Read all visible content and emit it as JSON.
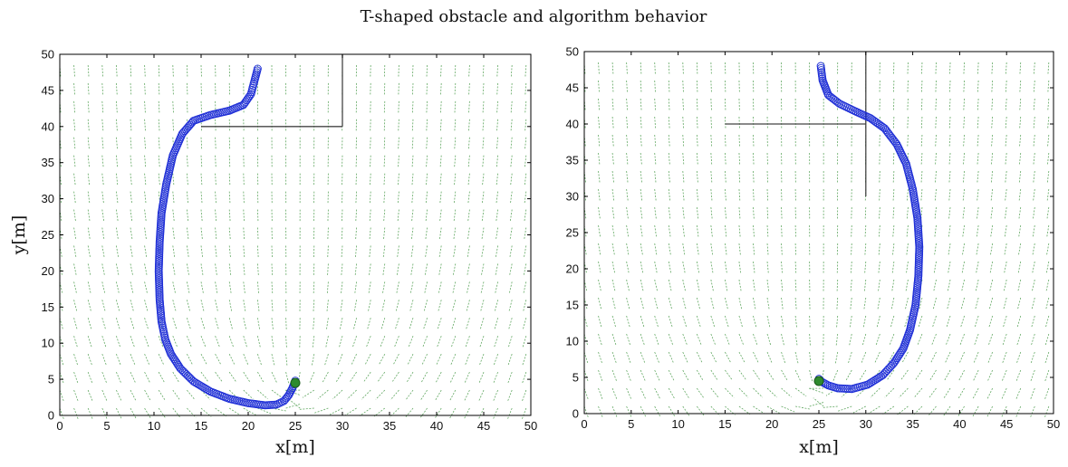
{
  "title": "T-shaped obstacle and algorithm behavior",
  "colors": {
    "trajectory": "#1f2fd6",
    "field": "#2e8b2e",
    "obstacle": "#444444",
    "goal": "#2e8b2e"
  },
  "chart_data": [
    {
      "type": "scatter",
      "panel": "left",
      "xlabel": "x[m]",
      "ylabel": "y[m]",
      "xlim": [
        0,
        50
      ],
      "ylim": [
        0,
        50
      ],
      "xticks": [
        0,
        5,
        10,
        15,
        20,
        25,
        30,
        35,
        40,
        45,
        50
      ],
      "yticks": [
        0,
        5,
        10,
        15,
        20,
        25,
        30,
        35,
        40,
        45,
        50
      ],
      "grid": false,
      "goal": [
        25,
        4.5
      ],
      "obstacle_segments": [
        {
          "x": [
            15,
            30
          ],
          "y": [
            40,
            40
          ]
        },
        {
          "x": [
            30,
            30
          ],
          "y": [
            40,
            50
          ]
        }
      ],
      "series": [
        {
          "x": [
            21,
            20.7,
            20.3,
            19.5,
            18,
            16,
            14.2,
            13,
            12,
            11.3,
            10.8,
            10.6,
            10.5,
            10.6,
            10.8,
            11.2,
            11.8,
            12.8,
            14.2,
            16,
            18,
            20,
            21.8,
            23,
            23.8,
            24.3,
            24.7,
            25
          ],
          "y": [
            48,
            46.5,
            44.5,
            43,
            42.2,
            41.6,
            40.8,
            39,
            36,
            32,
            28,
            24,
            20,
            16,
            13,
            10.5,
            8.5,
            6.5,
            4.7,
            3.3,
            2.3,
            1.7,
            1.4,
            1.5,
            2,
            2.8,
            3.8,
            4.8
          ]
        }
      ]
    },
    {
      "type": "scatter",
      "panel": "right",
      "xlabel": "x[m]",
      "ylabel": "",
      "xlim": [
        0,
        50
      ],
      "ylim": [
        0,
        50
      ],
      "xticks": [
        0,
        5,
        10,
        15,
        20,
        25,
        30,
        35,
        40,
        45,
        50
      ],
      "yticks": [
        0,
        5,
        10,
        15,
        20,
        25,
        30,
        35,
        40,
        45,
        50
      ],
      "grid": false,
      "goal": [
        25,
        4.5
      ],
      "obstacle_segments": [
        {
          "x": [
            15,
            30
          ],
          "y": [
            40,
            40
          ]
        },
        {
          "x": [
            30,
            30
          ],
          "y": [
            30,
            50
          ]
        }
      ],
      "series": [
        {
          "x": [
            25.2,
            25.4,
            26,
            27.2,
            28.8,
            30.5,
            32,
            33.3,
            34.3,
            35,
            35.5,
            35.7,
            35.6,
            35.3,
            34.7,
            34,
            33,
            31.8,
            30.2,
            28.5,
            27,
            26,
            25.3,
            25
          ],
          "y": [
            48,
            46,
            44,
            42.8,
            41.8,
            40.8,
            39.4,
            37.2,
            34.5,
            31,
            27,
            23,
            19,
            15,
            11.5,
            9,
            7,
            5.3,
            4,
            3.4,
            3.5,
            3.9,
            4.4,
            4.8
          ]
        }
      ]
    }
  ]
}
